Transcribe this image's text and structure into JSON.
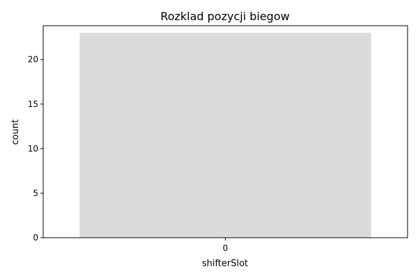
{
  "chart_data": {
    "type": "bar",
    "title": "Rozklad pozycji biegow",
    "xlabel": "shifterSlot",
    "ylabel": "count",
    "categories": [
      "0"
    ],
    "values": [
      23
    ],
    "ylim": [
      0,
      23.8
    ],
    "yticks": [
      0,
      5,
      10,
      15,
      20
    ],
    "bar_color": "#dbdbdb",
    "grid": false,
    "legend": false
  }
}
